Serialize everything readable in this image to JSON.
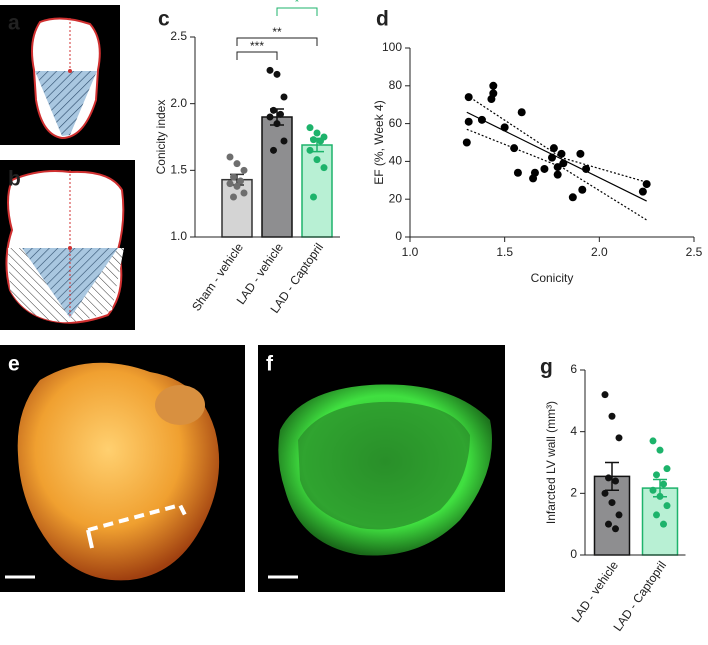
{
  "image_panels": [
    {
      "label": "a"
    },
    {
      "label": "b"
    },
    {
      "label": "e"
    },
    {
      "label": "f"
    }
  ],
  "chart_data": [
    {
      "type": "bar",
      "panel_label": "c",
      "y_label": "Conicity index",
      "categories": [
        "Sham - vehicle",
        "LAD - vehicle",
        "LAD - Captopril"
      ],
      "values": [
        1.43,
        1.9,
        1.69
      ],
      "errors": [
        0.04,
        0.06,
        0.05
      ],
      "points": [
        [
          1.6,
          1.55,
          1.5,
          1.45,
          1.42,
          1.4,
          1.38,
          1.33,
          1.3
        ],
        [
          2.25,
          2.22,
          2.05,
          1.95,
          1.92,
          1.9,
          1.85,
          1.72,
          1.65
        ],
        [
          1.82,
          1.78,
          1.75,
          1.73,
          1.72,
          1.65,
          1.58,
          1.52,
          1.3
        ]
      ],
      "colors": [
        "#d4d4d4",
        "#8e8e90",
        "#b8f0d4"
      ],
      "edge_colors": [
        "#333",
        "#111",
        "#1db36b"
      ],
      "point_colors": [
        "#6e6e6e",
        "#111",
        "#1db36b"
      ],
      "annotations": [
        {
          "text": "***",
          "color": "#222"
        },
        {
          "text": "**",
          "color": "#222"
        },
        {
          "text": "*",
          "color": "#1db36b"
        }
      ],
      "ylim": [
        1,
        2.5
      ],
      "yticks": [
        {
          "value": 1,
          "label": "1.0"
        },
        {
          "value": 1.5,
          "label": "1.5"
        },
        {
          "value": 2,
          "label": "2.0"
        },
        {
          "value": 2.5,
          "label": "2.5"
        }
      ]
    },
    {
      "type": "scatter",
      "panel_label": "d",
      "x_label": "Conicity",
      "y_label": "EF (%, Week 4)",
      "x": [
        1.3,
        1.31,
        1.31,
        1.38,
        1.43,
        1.44,
        1.44,
        1.5,
        1.55,
        1.59,
        1.57,
        1.65,
        1.66,
        1.71,
        1.75,
        1.76,
        1.78,
        1.78,
        1.8,
        1.81,
        1.86,
        1.9,
        1.91,
        1.93,
        2.23,
        2.25
      ],
      "y": [
        50,
        61,
        74,
        62,
        73,
        76,
        80,
        58,
        47,
        66,
        34,
        31,
        34,
        36,
        42,
        47,
        33,
        37,
        44,
        39,
        21,
        44,
        25,
        36,
        24,
        28
      ],
      "fit": {
        "x": [
          1.3,
          2.25
        ],
        "y": [
          66,
          19
        ]
      },
      "ci_upper": {
        "x": [
          1.3,
          1.8,
          2.25
        ],
        "y": [
          75,
          42,
          29
        ]
      },
      "ci_lower": {
        "x": [
          1.3,
          1.8,
          2.25
        ],
        "y": [
          57,
          37,
          9
        ]
      },
      "color": "#000",
      "xlim": [
        1,
        2.5
      ],
      "xticks": [
        {
          "value": 1,
          "label": "1.0"
        },
        {
          "value": 1.5,
          "label": "1.5"
        },
        {
          "value": 2,
          "label": "2.0"
        },
        {
          "value": 2.5,
          "label": "2.5"
        }
      ],
      "ylim": [
        0,
        100
      ],
      "yticks": [
        0,
        20,
        40,
        60,
        80,
        100
      ]
    },
    {
      "type": "bar",
      "panel_label": "g",
      "y_label": "Infarcted LV wall (mm³)",
      "categories": [
        "LAD - vehicle",
        "LAD - Captopril"
      ],
      "values": [
        2.55,
        2.17
      ],
      "errors": [
        0.45,
        0.28
      ],
      "points": [
        [
          5.2,
          4.5,
          3.8,
          2.5,
          2.4,
          2.0,
          1.7,
          1.3,
          1.0,
          0.85
        ],
        [
          3.7,
          3.4,
          2.8,
          2.6,
          2.3,
          2.1,
          1.9,
          1.6,
          1.3,
          1.0
        ]
      ],
      "colors": [
        "#8e8e90",
        "#b8f0d4"
      ],
      "edge_colors": [
        "#111",
        "#1db36b"
      ],
      "point_colors": [
        "#111",
        "#1db36b"
      ],
      "ylim": [
        0,
        6
      ],
      "yticks": [
        0,
        2,
        4,
        6
      ]
    }
  ]
}
